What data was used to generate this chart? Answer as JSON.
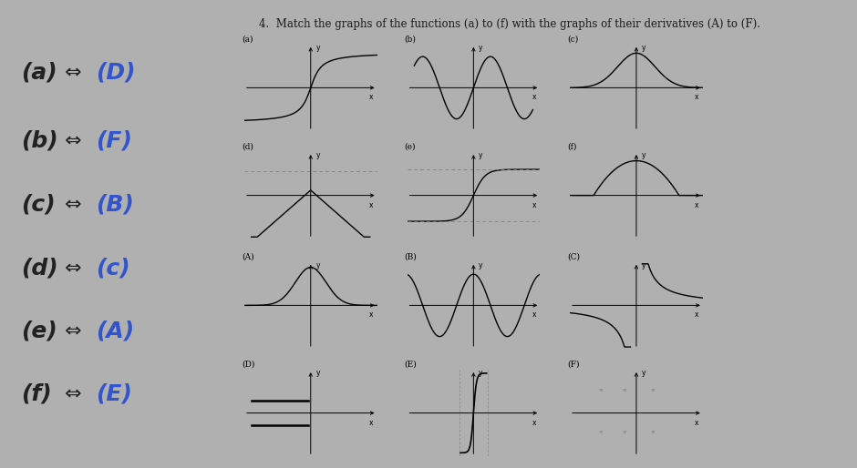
{
  "title": "4.  Match the graphs of the functions (a) to (f) with the graphs of their derivatives (A) to (F).",
  "bg_color": "#b0b0b0",
  "paper_color": "#ffffff",
  "text_color": "#1a1a1a",
  "answer_lines": [
    "(a) ⇔ (D)",
    "(b) ⇔ (F)",
    "(c) ⇔ (B)",
    "(d) ⇔ (c)",
    "(e) ⇔ (A)",
    "(f) ⇔ (E)"
  ],
  "answer_highlight": [
    3,
    3,
    2,
    1,
    1,
    1
  ],
  "col_starts": [
    0.285,
    0.475,
    0.665
  ],
  "row_bottoms": [
    0.72,
    0.49,
    0.255,
    0.025
  ],
  "gw": 0.155,
  "gh": 0.185,
  "graph_labels": [
    [
      "(a)",
      "(b)",
      "(c)"
    ],
    [
      "(d)",
      "(e)",
      "(f)"
    ],
    [
      "(A)",
      "(B)",
      "(C)"
    ],
    [
      "(D)",
      "(E)",
      "(F)"
    ]
  ]
}
